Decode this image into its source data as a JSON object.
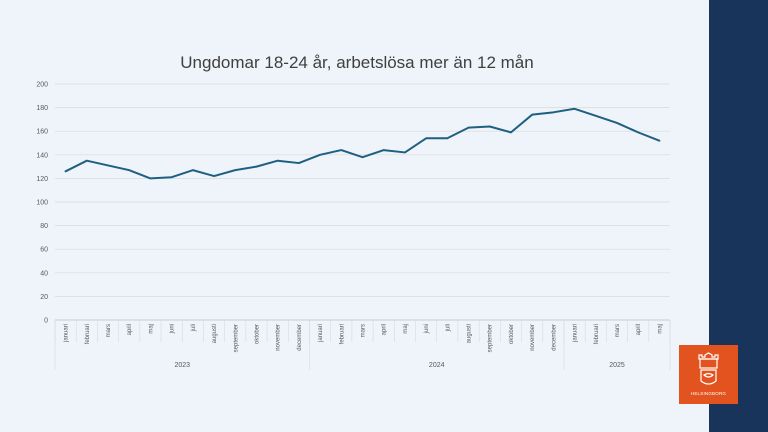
{
  "chart_data": {
    "type": "line",
    "title": "Ungdomar 18-24 år, arbetslösa mer än 12 mån",
    "xlabel": "",
    "ylabel": "",
    "ylim": [
      0,
      200
    ],
    "yticks": [
      0,
      20,
      40,
      60,
      80,
      100,
      120,
      140,
      160,
      180,
      200
    ],
    "grid": true,
    "legend": "none",
    "categories": [
      "januari",
      "februari",
      "mars",
      "april",
      "maj",
      "juni",
      "juli",
      "augusti",
      "september",
      "oktober",
      "november",
      "december",
      "januari",
      "februari",
      "mars",
      "april",
      "maj",
      "juni",
      "juli",
      "augusti",
      "september",
      "oktober",
      "november",
      "december",
      "januari",
      "februari",
      "mars",
      "april",
      "maj"
    ],
    "years": [
      {
        "label": "2023",
        "count": 12
      },
      {
        "label": "2024",
        "count": 12
      },
      {
        "label": "2025",
        "count": 5
      }
    ],
    "series": [
      {
        "values": [
          126,
          135,
          131,
          127,
          120,
          121,
          127,
          122,
          127,
          130,
          135,
          133,
          140,
          144,
          138,
          144,
          142,
          154,
          154,
          163,
          164,
          159,
          174,
          176,
          179,
          173,
          167,
          159,
          152
        ]
      }
    ],
    "color": "#1f5f82"
  },
  "logo": {
    "text": "HELSINGBORG"
  }
}
